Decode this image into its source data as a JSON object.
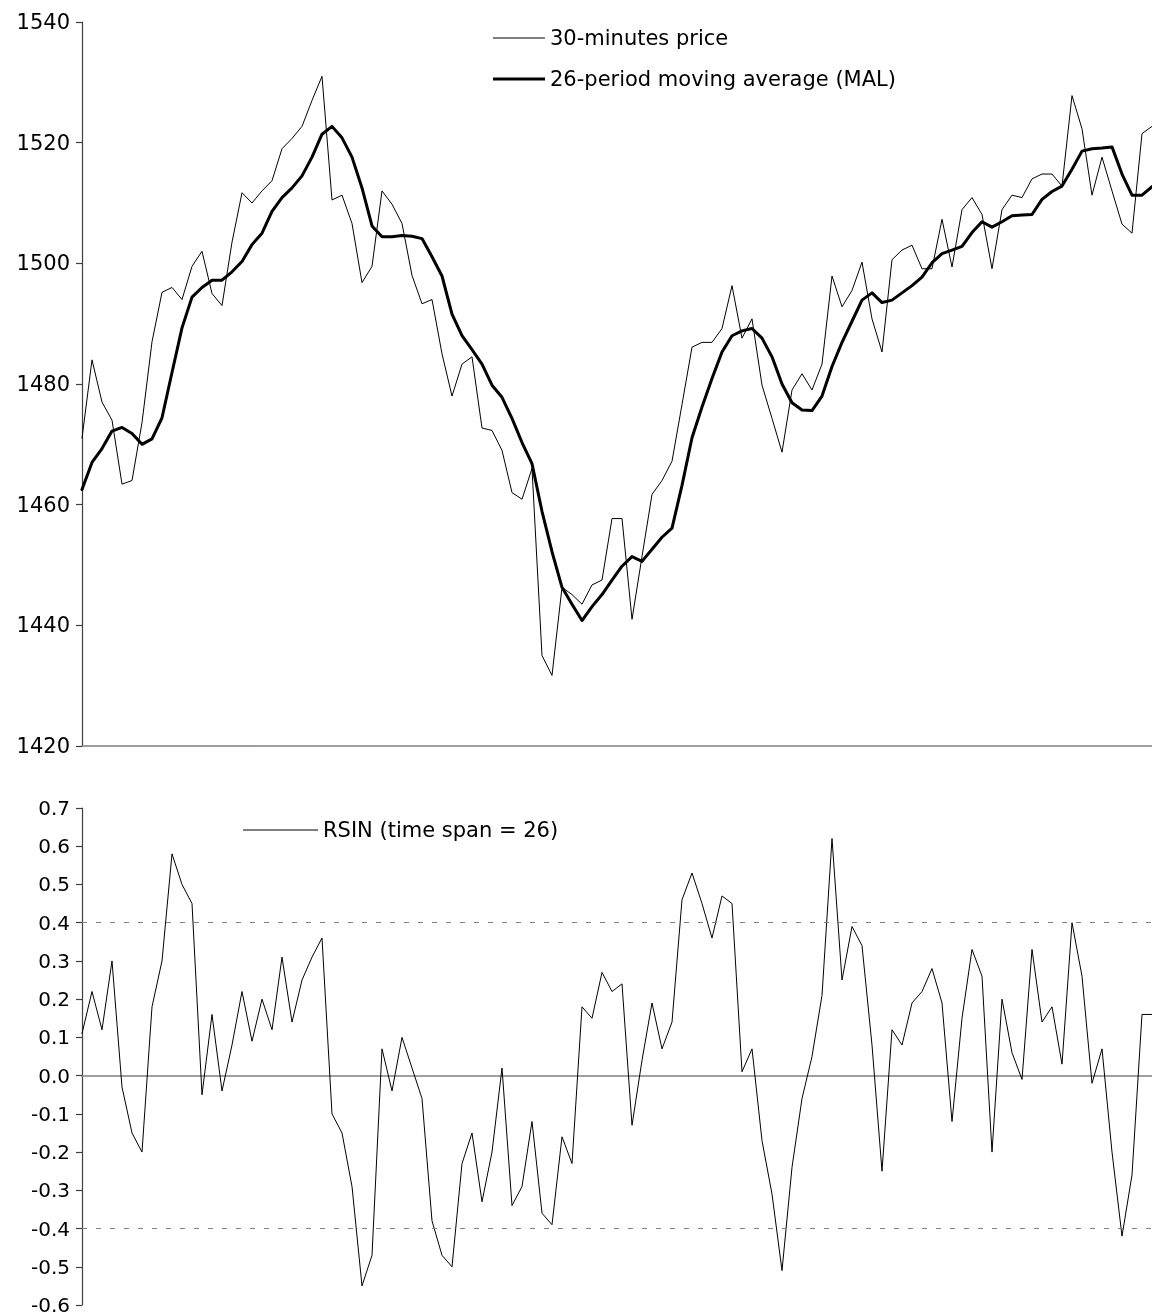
{
  "chart_data": [
    {
      "type": "line",
      "categories": [
        null,
        null,
        null,
        null,
        null,
        null,
        null,
        null,
        null,
        null,
        null,
        null,
        null,
        null,
        null,
        null,
        null,
        null,
        null,
        null,
        null,
        null,
        null,
        null,
        null,
        null,
        null,
        null,
        null,
        null,
        null,
        null,
        null,
        null,
        null,
        null,
        null,
        null,
        null,
        null,
        null,
        null,
        null,
        null,
        null,
        null,
        null,
        null,
        null,
        null,
        null,
        null,
        null,
        null,
        null,
        null,
        null,
        null,
        null,
        null,
        null,
        null,
        null,
        null,
        null,
        null,
        null,
        null,
        null,
        null,
        null,
        null,
        null,
        null,
        null,
        null,
        null,
        null,
        null,
        null,
        null,
        null,
        null,
        null,
        null,
        null,
        null,
        null,
        null,
        null,
        null,
        null,
        null,
        null,
        null,
        null,
        null,
        null,
        null,
        null,
        null,
        null,
        null,
        null,
        null,
        null,
        null,
        null
      ],
      "series": [
        {
          "name": "30-minutes price",
          "color": "#000000",
          "values": [
            1471,
            1484,
            1477,
            1474,
            1463.4,
            1464,
            1473.6,
            1487,
            1495.2,
            1496,
            1494,
            1499.5,
            1502,
            1495,
            1493,
            1503.5,
            1511.7,
            1510,
            1512,
            1513.7,
            1519,
            1520.7,
            1522.7,
            1527,
            1531,
            1510.5,
            1511.3,
            1506.6,
            1496.8,
            1499.5,
            1512,
            1509.8,
            1506.6,
            1498,
            1493.3,
            1494,
            1485,
            1478,
            1483.3,
            1484.5,
            1472.7,
            1472.3,
            1469,
            1462,
            1460.9,
            1466,
            1435,
            1431.7,
            1446.3,
            1445.1,
            1443.5,
            1446.7,
            1447.5,
            1457.7,
            1457.7,
            1441,
            1451.4,
            1461.7,
            1464,
            1467.2,
            1476.6,
            1486.1,
            1486.9,
            1486.9,
            1489.2,
            1496.3,
            1487.6,
            1490.8,
            1479.8,
            1474.3,
            1468.7,
            1479,
            1481.7,
            1479,
            1483.3,
            1497.9,
            1492.8,
            1495.5,
            1500.2,
            1490.8,
            1485.3,
            1500.6,
            1502.2,
            1503,
            1499.1,
            1499.1,
            1507.3,
            1499.4,
            1508.9,
            1510.9,
            1508.1,
            1499.1,
            1508.9,
            1511.3,
            1510.9,
            1514,
            1514.8,
            1514.8,
            1512.8,
            1527.8,
            1522.3,
            1511.3,
            1517.6,
            1512,
            1506.5,
            1505,
            1521.5,
            1522.7
          ]
        },
        {
          "name": "26-period moving average (MAL)",
          "color": "#000000",
          "values": [
            1462.5,
            1467,
            1469.3,
            1472.2,
            1472.8,
            1471.8,
            1470,
            1470.9,
            1474.4,
            1481.9,
            1489.3,
            1494.4,
            1496,
            1497.2,
            1497.2,
            1498.6,
            1500.3,
            1503.1,
            1505,
            1508.6,
            1510.9,
            1512.5,
            1514.5,
            1517.6,
            1521.4,
            1522.7,
            1520.8,
            1517.6,
            1512.5,
            1506.2,
            1504.4,
            1504.4,
            1504.6,
            1504.5,
            1504.1,
            1501.1,
            1497.9,
            1491.6,
            1488,
            1485.7,
            1483.3,
            1479.8,
            1477.8,
            1474.3,
            1470.3,
            1466.8,
            1458.9,
            1452.2,
            1446.3,
            1443.5,
            1440.8,
            1443.1,
            1445.1,
            1447.5,
            1449.8,
            1451.4,
            1450.6,
            1452.6,
            1454.6,
            1456.1,
            1463.2,
            1471.1,
            1476.2,
            1480.9,
            1485.3,
            1488,
            1488.8,
            1489.2,
            1487.6,
            1484.5,
            1480,
            1476.9,
            1475.7,
            1475.6,
            1478,
            1482.9,
            1486.9,
            1490.4,
            1493.9,
            1495.1,
            1493.5,
            1493.9,
            1495.1,
            1496.3,
            1497.7,
            1500.1,
            1501.6,
            1502.2,
            1502.8,
            1505.1,
            1506.9,
            1506,
            1506.9,
            1507.9,
            1508,
            1508.1,
            1510.6,
            1511.9,
            1512.8,
            1515.6,
            1518.6,
            1519,
            1519.1,
            1519.3,
            1514.8,
            1511.3,
            1511.3,
            1512.7
          ]
        }
      ],
      "ylim": [
        1420,
        1540
      ],
      "yticks": [
        1420,
        1440,
        1460,
        1480,
        1500,
        1520,
        1540
      ],
      "tick_labels": "y",
      "legend": "top",
      "marker": "none",
      "grid": false
    },
    {
      "type": "line",
      "categories": [
        null,
        null,
        null,
        null,
        null,
        null,
        null,
        null,
        null,
        null,
        null,
        null,
        null,
        null,
        null,
        null,
        null,
        null,
        null,
        null,
        null,
        null,
        null,
        null,
        null,
        null,
        null,
        null,
        null,
        null,
        null,
        null,
        null,
        null,
        null,
        null,
        null,
        null,
        null,
        null,
        null,
        null,
        null,
        null,
        null,
        null,
        null,
        null,
        null,
        null,
        null,
        null,
        null,
        null,
        null,
        null,
        null,
        null,
        null,
        null,
        null,
        null,
        null,
        null,
        null,
        null,
        null,
        null,
        null,
        null,
        null,
        null,
        null,
        null,
        null,
        null,
        null,
        null,
        null,
        null,
        null,
        null,
        null,
        null,
        null,
        null,
        null,
        null,
        null,
        null,
        null,
        null,
        null,
        null,
        null,
        null,
        null,
        null,
        null,
        null,
        null,
        null,
        null,
        null,
        null,
        null,
        null,
        null
      ],
      "series": [
        {
          "name": "RSIN (time span = 26)",
          "color": "#000000",
          "values": [
            0.11,
            0.22,
            0.12,
            0.3,
            -0.03,
            -0.15,
            -0.2,
            0.18,
            0.3,
            0.58,
            0.5,
            0.45,
            -0.05,
            0.16,
            -0.04,
            0.08,
            0.22,
            0.09,
            0.2,
            0.12,
            0.31,
            0.14,
            0.25,
            0.31,
            0.36,
            -0.1,
            -0.15,
            -0.29,
            -0.55,
            -0.47,
            0.07,
            -0.04,
            0.1,
            0.02,
            -0.06,
            -0.38,
            -0.47,
            -0.5,
            -0.23,
            -0.15,
            -0.33,
            -0.2,
            0.02,
            -0.34,
            -0.29,
            -0.12,
            -0.36,
            -0.39,
            -0.16,
            -0.23,
            0.18,
            0.15,
            0.27,
            0.22,
            0.24,
            -0.13,
            0.04,
            0.19,
            0.07,
            0.14,
            0.46,
            0.53,
            0.45,
            0.36,
            0.47,
            0.45,
            0.01,
            0.07,
            -0.17,
            -0.31,
            -0.51,
            -0.24,
            -0.06,
            0.05,
            0.21,
            0.62,
            0.25,
            0.39,
            0.34,
            0.08,
            -0.25,
            0.12,
            0.08,
            0.19,
            0.22,
            0.28,
            0.19,
            -0.12,
            0.15,
            0.33,
            0.26,
            -0.2,
            0.2,
            0.06,
            -0.01,
            0.33,
            0.14,
            0.18,
            0.03,
            0.4,
            0.26,
            -0.02,
            0.07,
            -0.2,
            -0.42,
            -0.26,
            0.16,
            0.16
          ]
        }
      ],
      "ylim": [
        -0.6,
        0.7
      ],
      "yticks": [
        -0.6,
        -0.5,
        -0.4,
        -0.3,
        -0.2,
        -0.1,
        {
          "value": 0,
          "label": "0.0"
        },
        0.1,
        0.2,
        0.3,
        0.4,
        0.5,
        0.6,
        0.7
      ],
      "tick_labels": "y",
      "legend": "top left",
      "marker": "none",
      "grid": false,
      "ref_lines": [
        {
          "axis": "y",
          "value": 0.4,
          "color": "#808080",
          "line_style": "dashed"
        },
        {
          "axis": "y",
          "value": -0.4,
          "color": "#808080",
          "line_style": "dashed"
        }
      ]
    }
  ]
}
